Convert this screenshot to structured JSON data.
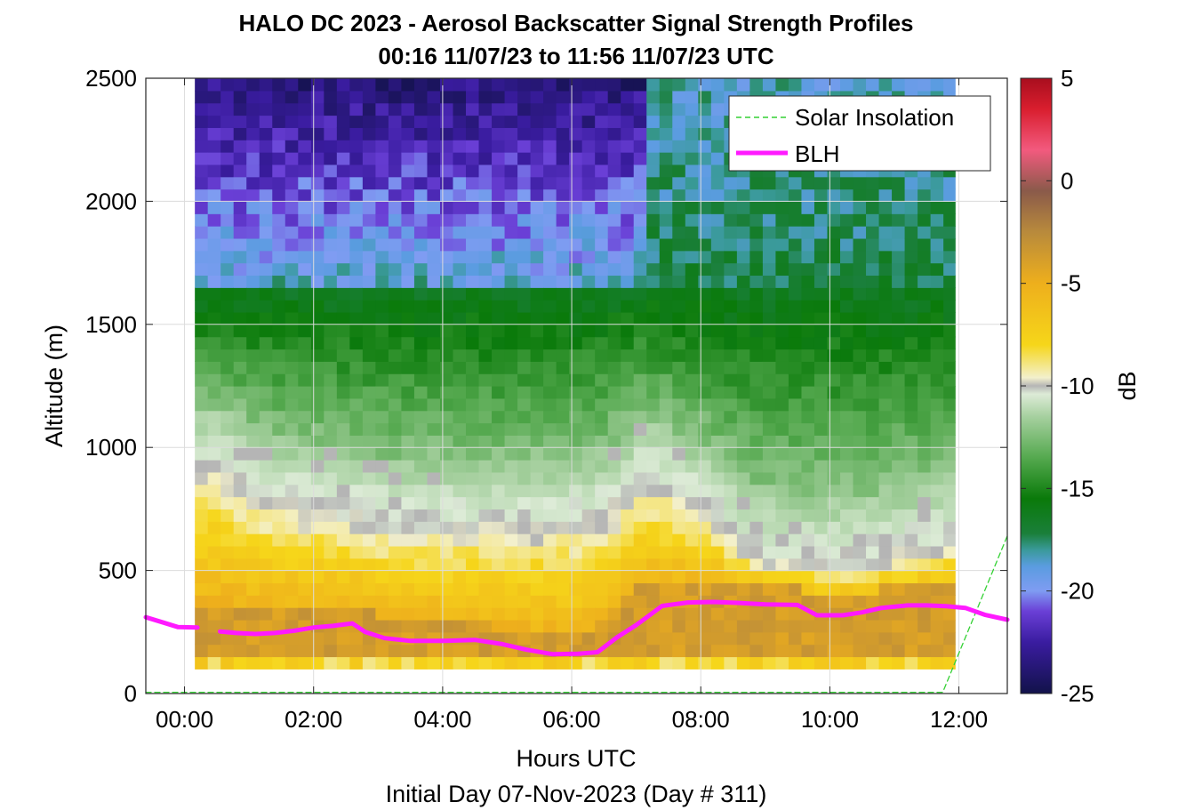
{
  "chart_data": {
    "type": "heatmap",
    "title": "HALO DC 2023 - Aerosol Backscatter Signal Strength Profiles",
    "subtitle": "00:16 11/07/23 to 11:56 11/07/23  UTC",
    "xlabel": "Hours UTC",
    "xlabel2": "Initial Day 07-Nov-2023 (Day # 311)",
    "ylabel": "Altitude (m)",
    "xlim": [
      -0.6,
      12.75
    ],
    "ylim": [
      0,
      2500
    ],
    "x_ticks": [
      0,
      2,
      4,
      6,
      8,
      10,
      12
    ],
    "x_tick_labels": [
      "00:00",
      "02:00",
      "04:00",
      "06:00",
      "08:00",
      "10:00",
      "12:00"
    ],
    "y_ticks": [
      0,
      500,
      1000,
      1500,
      2000,
      2500
    ],
    "y_tick_labels": [
      "0",
      "500",
      "1000",
      "1500",
      "2000",
      "2500"
    ],
    "grid": true,
    "colorbar": {
      "label": "dB",
      "range": [
        -25,
        5
      ],
      "ticks": [
        5,
        0,
        -5,
        -10,
        -15,
        -20,
        -25
      ],
      "tick_labels": [
        "5",
        "0",
        "-5",
        "-10",
        "-15",
        "-20",
        "-25"
      ],
      "stops": [
        {
          "v": -25,
          "c": "#12124a"
        },
        {
          "v": -22.5,
          "c": "#3a1ca0"
        },
        {
          "v": -21,
          "c": "#6a3fd6"
        },
        {
          "v": -20,
          "c": "#7f9cf2"
        },
        {
          "v": -18.8,
          "c": "#5a9ce0"
        },
        {
          "v": -18,
          "c": "#3a9a9a"
        },
        {
          "v": -17.2,
          "c": "#1a7f3a"
        },
        {
          "v": -15.5,
          "c": "#0a7a0a"
        },
        {
          "v": -13.5,
          "c": "#55a94f"
        },
        {
          "v": -11.5,
          "c": "#a6d09f"
        },
        {
          "v": -10.4,
          "c": "#ddebd7"
        },
        {
          "v": -10,
          "c": "#b5b5b5"
        },
        {
          "v": -9.6,
          "c": "#f3f0cc"
        },
        {
          "v": -8,
          "c": "#f6d61a"
        },
        {
          "v": -5,
          "c": "#eeaf1c"
        },
        {
          "v": -2.5,
          "c": "#b88a3c"
        },
        {
          "v": -0.5,
          "c": "#8a5a4a"
        },
        {
          "v": 1.5,
          "c": "#f25a7e"
        },
        {
          "v": 3.5,
          "c": "#d91e2e"
        },
        {
          "v": 5,
          "c": "#a80e1e"
        }
      ]
    },
    "heatmap": {
      "x_start": 0.16,
      "x_end": 11.94,
      "x_step": 0.2,
      "y_start": 100,
      "y_end": 2500,
      "y_step": 50,
      "units": "dB",
      "profiles": [
        {
          "x": 0.5,
          "blh": 255,
          "top": 1000
        },
        {
          "x": 1.0,
          "blh": 240,
          "top": 880
        },
        {
          "x": 2.0,
          "blh": 265,
          "top": 820
        },
        {
          "x": 2.5,
          "blh": 280,
          "top": 800
        },
        {
          "x": 3.0,
          "blh": 225,
          "top": 780
        },
        {
          "x": 4.0,
          "blh": 215,
          "top": 760
        },
        {
          "x": 5.0,
          "blh": 180,
          "top": 760
        },
        {
          "x": 6.0,
          "blh": 160,
          "top": 770
        },
        {
          "x": 6.5,
          "blh": 240,
          "top": 820
        },
        {
          "x": 7.0,
          "blh": 350,
          "top": 950
        },
        {
          "x": 8.0,
          "blh": 370,
          "top": 820
        },
        {
          "x": 8.5,
          "blh": 365,
          "top": 700
        },
        {
          "x": 9.0,
          "blh": 360,
          "top": 640
        },
        {
          "x": 10.0,
          "blh": 320,
          "top": 620
        },
        {
          "x": 11.0,
          "blh": 355,
          "top": 660
        },
        {
          "x": 12.0,
          "blh": 340,
          "top": 720
        }
      ]
    },
    "series": [
      {
        "name": "Solar Insolation",
        "style": "dashed",
        "color": "#34d134",
        "x": [
          -0.6,
          11.75,
          12.75
        ],
        "y": [
          5,
          5,
          640
        ]
      },
      {
        "name": "BLH",
        "style": "solid",
        "color": "#ff1aff",
        "segments": [
          {
            "x": [
              -0.6,
              -0.35,
              -0.1,
              0.2
            ],
            "y": [
              310,
              290,
              270,
              268
            ]
          },
          {
            "x": [
              0.55,
              0.8,
              1.1,
              1.4,
              1.7,
              2.0,
              2.3,
              2.6,
              2.8,
              3.1,
              3.5,
              4.0,
              4.5,
              4.9,
              5.3,
              5.7,
              6.1,
              6.4,
              6.7,
              7.0,
              7.4,
              7.8,
              8.2,
              8.6,
              9.0,
              9.5,
              9.8,
              10.2,
              10.5,
              10.8,
              11.2,
              11.5,
              11.8,
              12.1,
              12.4,
              12.75
            ],
            "y": [
              252,
              246,
              242,
              246,
              255,
              268,
              275,
              285,
              250,
              225,
              214,
              214,
              218,
              202,
              178,
              160,
              162,
              168,
              228,
              278,
              356,
              370,
              372,
              368,
              362,
              360,
              318,
              318,
              330,
              348,
              358,
              358,
              355,
              348,
              320,
              300
            ]
          }
        ]
      }
    ],
    "legend": {
      "placement": "top-right",
      "entries": [
        "Solar Insolation",
        "BLH"
      ]
    }
  }
}
